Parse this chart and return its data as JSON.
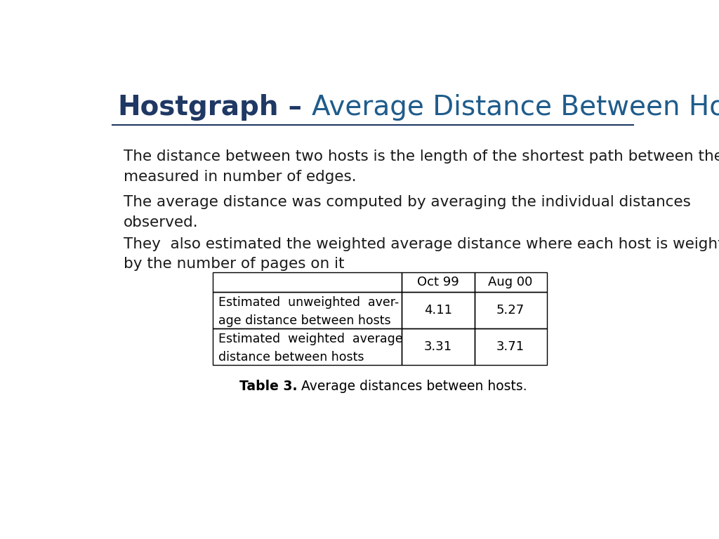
{
  "title_bold": "Hostgraph",
  "title_dash": " – ",
  "title_regular": "Average Distance Between Hosts",
  "title_bold_color": "#1F3864",
  "title_regular_color": "#1F5C8B",
  "title_fontsize": 28,
  "line_color": "#1F3864",
  "bg_color": "#FFFFFF",
  "body_text_color": "#1a1a1a",
  "body_fontsize": 15.5,
  "paragraph1": "The distance between two hosts is the length of the shortest path between them\nmeasured in number of edges.",
  "paragraph2": "The average distance was computed by averaging the individual distances\nobserved.",
  "paragraph3": "They  also estimated the weighted average distance where each host is weighted\nby the number of pages on it",
  "table_col_headers": [
    "Oct 99",
    "Aug 00"
  ],
  "table_row1_label": "Estimated  unweighted  aver-\nage distance between hosts",
  "table_row2_label": "Estimated  weighted  average\ndistance between hosts",
  "table_row1_vals": [
    "4.11",
    "5.27"
  ],
  "table_row2_vals": [
    "3.31",
    "3.71"
  ],
  "caption_bold": "Table 3.",
  "caption_regular": " Average distances between hosts.",
  "caption_fontsize": 13.5
}
